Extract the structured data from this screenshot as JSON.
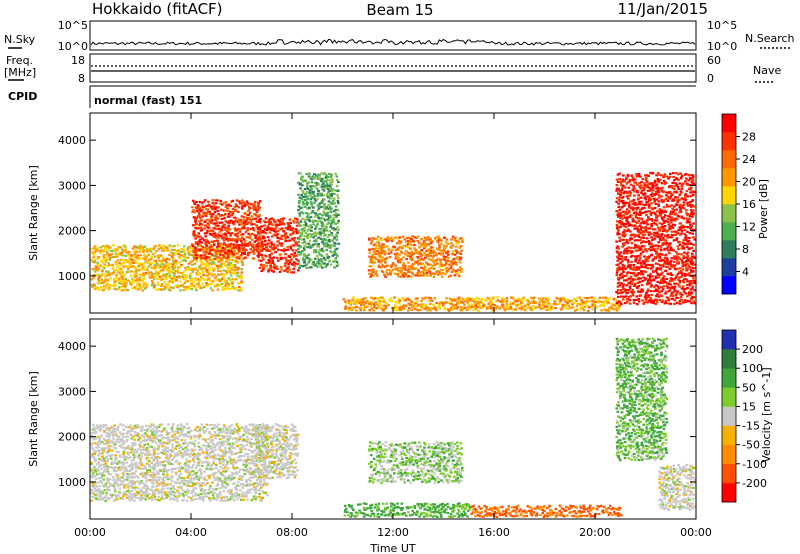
{
  "header": {
    "station": "Hokkaido (fitACF)",
    "beam": "Beam 15",
    "date": "11/Jan/2015"
  },
  "strip": {
    "nsky_label": "N.Sky",
    "nsky_ticks": [
      "10^5",
      "10^0"
    ],
    "nsearch_label": "N.Search",
    "nsearch_ticks": [
      "10^5",
      "10^0"
    ],
    "freq_label_1": "Freq.",
    "freq_label_2": "[MHz]",
    "freq_ticks": [
      "18",
      "8"
    ],
    "nave_label": "Nave",
    "nave_ticks": [
      "60",
      "0"
    ],
    "cpid_label": "CPID",
    "cpid_text": "normal (fast) 151"
  },
  "panels": {
    "ylabel": "Slant Range [km]",
    "xlabel": "Time UT",
    "yticks": [
      "1000",
      "2000",
      "3000",
      "4000"
    ],
    "xticks": [
      "00:00",
      "04:00",
      "08:00",
      "12:00",
      "16:00",
      "20:00",
      "00:00"
    ],
    "power_cbar_label": "Power [dB]",
    "power_cbar_ticks": [
      "28",
      "24",
      "20",
      "16",
      "12",
      "8",
      "4"
    ],
    "velocity_cbar_label": "Velocity [m s^-1]",
    "velocity_cbar_ticks": [
      "200",
      "100",
      "50",
      "15",
      "-15",
      "-50",
      "-100",
      "-200"
    ]
  },
  "colors": {
    "power": [
      "#0000ff",
      "#1f3fa0",
      "#2e7d5b",
      "#4caf50",
      "#8bc34a",
      "#ffd600",
      "#ff9800",
      "#ff6a00",
      "#ff3300",
      "#ff0000"
    ],
    "velocity": [
      "#2030b0",
      "#2e7d3a",
      "#3fa63c",
      "#7ccc2c",
      "#c8c8c8",
      "#f6b000",
      "#ff8c00",
      "#ff5000",
      "#ff0000"
    ]
  },
  "chart_data": [
    {
      "type": "heatmap",
      "title": "",
      "xlabel": "Time UT",
      "ylabel": "Slant Range [km]",
      "xlim": [
        "00:00",
        "24:00"
      ],
      "ylim": [
        180,
        4600
      ],
      "colorbar": {
        "label": "Power [dB]",
        "range": [
          0,
          30
        ]
      },
      "features": [
        {
          "t_start": 0.0,
          "t_end": 6.0,
          "range_low": 700,
          "range_high": 1700,
          "power": 18
        },
        {
          "t_start": 4.0,
          "t_end": 6.7,
          "range_low": 1400,
          "range_high": 2700,
          "power": 27
        },
        {
          "t_start": 6.6,
          "t_end": 8.2,
          "range_low": 1100,
          "range_high": 2300,
          "power": 28
        },
        {
          "t_start": 8.2,
          "t_end": 9.8,
          "range_low": 1200,
          "range_high": 3300,
          "power": 10
        },
        {
          "t_start": 11.0,
          "t_end": 14.7,
          "range_low": 1000,
          "range_high": 1900,
          "power": 22
        },
        {
          "t_start": 10.0,
          "t_end": 21.0,
          "range_low": 250,
          "range_high": 550,
          "power": 20
        },
        {
          "t_start": 20.8,
          "t_end": 23.9,
          "range_low": 400,
          "range_high": 3300,
          "power": 29
        }
      ]
    },
    {
      "type": "heatmap",
      "title": "",
      "xlabel": "Time UT",
      "ylabel": "Slant Range [km]",
      "xlim": [
        "00:00",
        "24:00"
      ],
      "ylim": [
        180,
        4600
      ],
      "colorbar": {
        "label": "Velocity [m s^-1]",
        "range": [
          -200,
          200
        ]
      },
      "features": [
        {
          "t_start": 0.0,
          "t_end": 7.0,
          "range_low": 600,
          "range_high": 2300,
          "velocity": 0
        },
        {
          "t_start": 6.5,
          "t_end": 8.2,
          "range_low": 1100,
          "range_high": 2300,
          "velocity": 0
        },
        {
          "t_start": 11.0,
          "t_end": 14.7,
          "range_low": 1000,
          "range_high": 1900,
          "velocity": 20
        },
        {
          "t_start": 10.0,
          "t_end": 15.0,
          "range_low": 250,
          "range_high": 550,
          "velocity": 40
        },
        {
          "t_start": 15.0,
          "t_end": 21.0,
          "range_low": 250,
          "range_high": 500,
          "velocity": -80
        },
        {
          "t_start": 20.8,
          "t_end": 22.8,
          "range_low": 1500,
          "range_high": 4200,
          "velocity": 30
        },
        {
          "t_start": 22.5,
          "t_end": 23.9,
          "range_low": 400,
          "range_high": 1400,
          "velocity": 0
        }
      ]
    }
  ]
}
